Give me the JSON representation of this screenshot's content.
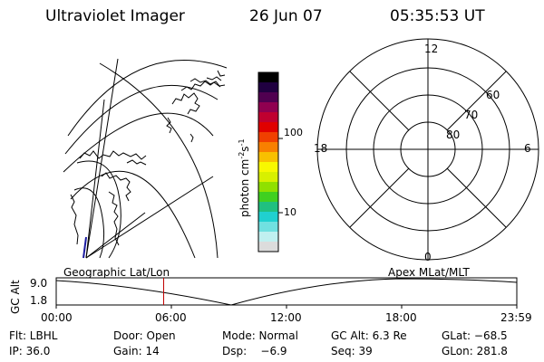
{
  "header": {
    "instrument": "Ultraviolet Imager",
    "date": "26 Jun 07",
    "time": "05:35:53 UT"
  },
  "left_panel": {
    "label": "Geographic Lat/Lon"
  },
  "right_panel": {
    "label": "Apex MLat/MLT",
    "mlt_labels": {
      "top": "12",
      "left": "18",
      "right": "6",
      "bottom": "0"
    },
    "lat_labels": [
      "60",
      "70",
      "80"
    ]
  },
  "colorbar": {
    "unit_prefix": "photon cm",
    "unit_exp1": "-2",
    "unit_s": "s",
    "unit_exp2": "-1",
    "ticks": [
      "100",
      "10"
    ],
    "colors": [
      "#dcdcdc",
      "#c0f0f0",
      "#70e0e0",
      "#20d0d0",
      "#20c080",
      "#40d020",
      "#90e000",
      "#d8f000",
      "#f8f800",
      "#f8c000",
      "#f88000",
      "#f04000",
      "#e00000",
      "#c00030",
      "#900050",
      "#500050",
      "#200040",
      "#000000"
    ]
  },
  "altitude_plot": {
    "ylabel": "GC Alt",
    "yticks": [
      "9.0",
      "1.8"
    ],
    "xticks": [
      "00:00",
      "06:00",
      "12:00",
      "18:00",
      "23:59"
    ],
    "marker_color": "#c00000",
    "marker_time_fraction": 0.2333
  },
  "info": {
    "row1": [
      "Flt: LBHL",
      "Door: Open",
      "Mode: Normal",
      "GC Alt: 6.3 Re",
      "GLat: −68.5"
    ],
    "row2": [
      "IP: 36.0",
      "Gain: 14",
      "Dsp:    −6.9",
      "Seq: 39",
      "GLon: 281.8"
    ]
  }
}
